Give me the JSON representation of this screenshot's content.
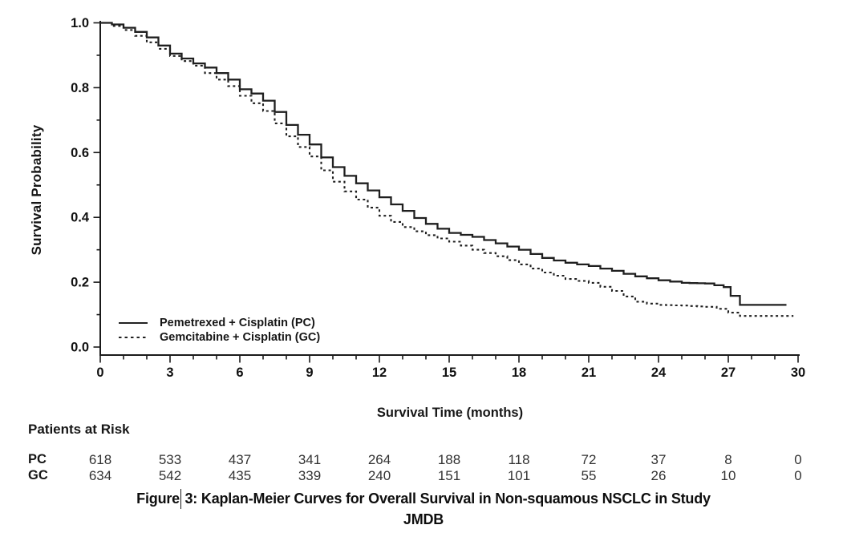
{
  "colors": {
    "ink": "#1a1a1a",
    "curve": "#1f1f1f",
    "table_text": "#333333",
    "background": "#ffffff"
  },
  "figure": {
    "caption_part1": "Figure",
    "caption_part2": "3: Kaplan-Meier Curves for Overall Survival in Non-squamous NSCLC in Study",
    "caption_line2": "JMDB"
  },
  "chart_data": {
    "type": "line",
    "subtype": "kaplan-meier-step",
    "title": "",
    "xlabel": "Survival Time (months)",
    "ylabel": "Survival Probability",
    "xlim": [
      0,
      30
    ],
    "ylim": [
      0.0,
      1.0
    ],
    "x_major_ticks": [
      0,
      3,
      6,
      9,
      12,
      15,
      18,
      21,
      24,
      27,
      30
    ],
    "x_minor_step": 1,
    "y_major_ticks": [
      0.0,
      0.2,
      0.4,
      0.6,
      0.8,
      1.0
    ],
    "y_minor_step": 0.1,
    "grid": false,
    "legend_position": "inside-lower-left",
    "series": [
      {
        "name": "Pemetrexed + Cisplatin (PC)",
        "short": "PC",
        "line": "solid",
        "points": [
          [
            0,
            1.0
          ],
          [
            0.5,
            0.995
          ],
          [
            1,
            0.985
          ],
          [
            1.5,
            0.972
          ],
          [
            2,
            0.955
          ],
          [
            2.5,
            0.93
          ],
          [
            3,
            0.905
          ],
          [
            3.5,
            0.89
          ],
          [
            4,
            0.875
          ],
          [
            4.5,
            0.862
          ],
          [
            5,
            0.845
          ],
          [
            5.5,
            0.825
          ],
          [
            6,
            0.795
          ],
          [
            6.5,
            0.782
          ],
          [
            7,
            0.76
          ],
          [
            7.5,
            0.725
          ],
          [
            8,
            0.685
          ],
          [
            8.5,
            0.655
          ],
          [
            9,
            0.625
          ],
          [
            9.5,
            0.585
          ],
          [
            10,
            0.555
          ],
          [
            10.5,
            0.528
          ],
          [
            11,
            0.505
          ],
          [
            11.5,
            0.483
          ],
          [
            12,
            0.462
          ],
          [
            12.5,
            0.44
          ],
          [
            13,
            0.42
          ],
          [
            13.5,
            0.398
          ],
          [
            14,
            0.38
          ],
          [
            14.5,
            0.365
          ],
          [
            15,
            0.352
          ],
          [
            15.5,
            0.346
          ],
          [
            16,
            0.34
          ],
          [
            16.5,
            0.33
          ],
          [
            17,
            0.32
          ],
          [
            17.5,
            0.31
          ],
          [
            18,
            0.3
          ],
          [
            18.5,
            0.287
          ],
          [
            19,
            0.275
          ],
          [
            19.5,
            0.267
          ],
          [
            20,
            0.26
          ],
          [
            20.5,
            0.255
          ],
          [
            21,
            0.25
          ],
          [
            21.5,
            0.242
          ],
          [
            22,
            0.235
          ],
          [
            22.5,
            0.226
          ],
          [
            23,
            0.218
          ],
          [
            23.5,
            0.212
          ],
          [
            24,
            0.206
          ],
          [
            24.5,
            0.202
          ],
          [
            25,
            0.198
          ],
          [
            26,
            0.196
          ],
          [
            26.8,
            0.185
          ],
          [
            27.1,
            0.158
          ],
          [
            27.5,
            0.13
          ],
          [
            29.5,
            0.13
          ]
        ]
      },
      {
        "name": "Gemcitabine + Cisplatin (GC)",
        "short": "GC",
        "line": "dotted",
        "points": [
          [
            0,
            1.0
          ],
          [
            0.5,
            0.99
          ],
          [
            1,
            0.978
          ],
          [
            1.5,
            0.96
          ],
          [
            2,
            0.94
          ],
          [
            2.5,
            0.92
          ],
          [
            3,
            0.898
          ],
          [
            3.5,
            0.882
          ],
          [
            4,
            0.868
          ],
          [
            4.5,
            0.845
          ],
          [
            5,
            0.825
          ],
          [
            5.5,
            0.805
          ],
          [
            6,
            0.775
          ],
          [
            6.5,
            0.752
          ],
          [
            7,
            0.728
          ],
          [
            7.5,
            0.69
          ],
          [
            8,
            0.65
          ],
          [
            8.5,
            0.617
          ],
          [
            9,
            0.588
          ],
          [
            9.5,
            0.545
          ],
          [
            10,
            0.51
          ],
          [
            10.5,
            0.48
          ],
          [
            11,
            0.455
          ],
          [
            11.5,
            0.43
          ],
          [
            12,
            0.405
          ],
          [
            12.5,
            0.386
          ],
          [
            13,
            0.37
          ],
          [
            13.5,
            0.357
          ],
          [
            14,
            0.345
          ],
          [
            14.5,
            0.335
          ],
          [
            15,
            0.325
          ],
          [
            15.5,
            0.313
          ],
          [
            16,
            0.3
          ],
          [
            16.5,
            0.29
          ],
          [
            17,
            0.28
          ],
          [
            17.5,
            0.268
          ],
          [
            18,
            0.255
          ],
          [
            18.5,
            0.242
          ],
          [
            19,
            0.23
          ],
          [
            19.5,
            0.22
          ],
          [
            20,
            0.21
          ],
          [
            20.5,
            0.204
          ],
          [
            21,
            0.198
          ],
          [
            21.5,
            0.186
          ],
          [
            22,
            0.173
          ],
          [
            22.5,
            0.156
          ],
          [
            23,
            0.14
          ],
          [
            23.5,
            0.134
          ],
          [
            24,
            0.13
          ],
          [
            25,
            0.128
          ],
          [
            26,
            0.124
          ],
          [
            26.5,
            0.118
          ],
          [
            27,
            0.106
          ],
          [
            27.5,
            0.096
          ],
          [
            29.8,
            0.096
          ]
        ]
      }
    ],
    "at_risk": {
      "header": "Patients at Risk",
      "times": [
        0,
        3,
        6,
        9,
        12,
        15,
        18,
        21,
        24,
        27,
        30
      ],
      "rows": [
        {
          "label": "PC",
          "counts": [
            618,
            533,
            437,
            341,
            264,
            188,
            118,
            72,
            37,
            8,
            0
          ]
        },
        {
          "label": "GC",
          "counts": [
            634,
            542,
            435,
            339,
            240,
            151,
            101,
            55,
            26,
            10,
            0
          ]
        }
      ]
    }
  }
}
